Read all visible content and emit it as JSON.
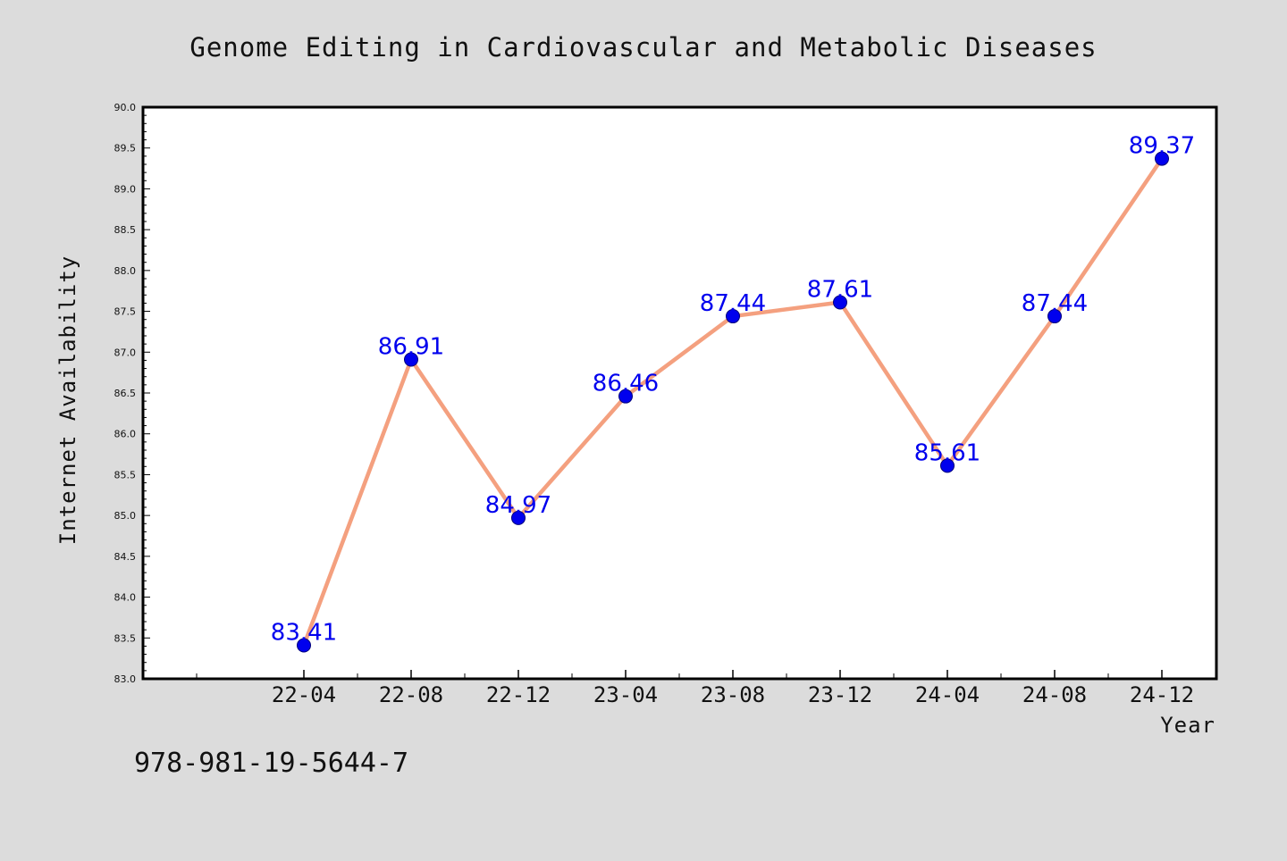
{
  "chart_data": {
    "type": "line",
    "title": "Genome Editing in Cardiovascular and Metabolic Diseases",
    "xlabel": "Year",
    "ylabel": "Internet Availability",
    "categories": [
      "22-04",
      "22-08",
      "22-12",
      "23-04",
      "23-08",
      "23-12",
      "24-04",
      "24-08",
      "24-12"
    ],
    "series": [
      {
        "values": [
          83.41,
          86.91,
          84.97,
          86.46,
          87.44,
          87.61,
          85.61,
          87.44,
          89.37
        ]
      }
    ],
    "data_labels": [
      "83.41",
      "86.91",
      "84.97",
      "86.46",
      "87.44",
      "87.61",
      "85.61",
      "87.44",
      "89.37"
    ],
    "ylim": [
      83.0,
      90.0
    ],
    "yticks": [
      "83.0",
      "83.5",
      "84.0",
      "84.5",
      "85.0",
      "85.5",
      "86.0",
      "86.5",
      "87.0",
      "87.5",
      "88.0",
      "88.5",
      "89.0",
      "89.5",
      "90.0"
    ],
    "grid": false,
    "line_color": "#f4a07f",
    "marker_color": "#0000ee",
    "label_color": "#0000ee",
    "background_color": "#dcdcdc",
    "plot_background": "#ffffff"
  },
  "footer_text": "978-981-19-5644-7"
}
